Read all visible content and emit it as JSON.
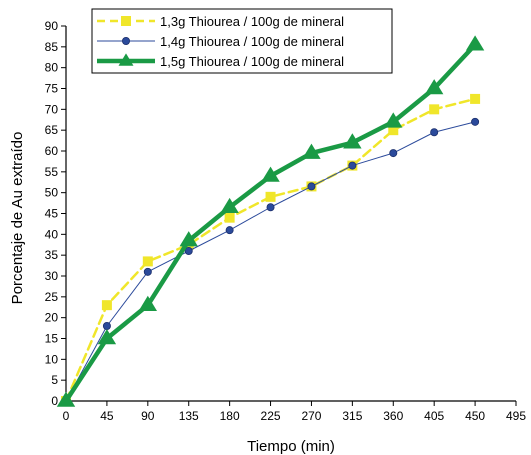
{
  "chart_data": {
    "type": "line",
    "xlabel": "Tiempo (min)",
    "ylabel": "Porcentaje de Au extraído",
    "xlim": [
      0,
      495
    ],
    "ylim": [
      0,
      90
    ],
    "x_ticks": [
      0,
      45,
      90,
      135,
      180,
      225,
      270,
      315,
      360,
      405,
      450,
      495
    ],
    "y_ticks": [
      0,
      5,
      10,
      15,
      20,
      25,
      30,
      35,
      40,
      45,
      50,
      55,
      60,
      65,
      70,
      75,
      80,
      85,
      90
    ],
    "grid": false,
    "legend_position": "top",
    "x": [
      0,
      45,
      90,
      135,
      180,
      225,
      270,
      315,
      360,
      405,
      450
    ],
    "series": [
      {
        "name": "1,3g Thiourea / 100g de mineral",
        "values": [
          0,
          23,
          33.5,
          37.5,
          44,
          49,
          51.5,
          56.5,
          65,
          70,
          72.5
        ],
        "color": "#f0e62a",
        "marker": "square",
        "line_style": "dashed"
      },
      {
        "name": "1,4g Thiourea / 100g de mineral",
        "values": [
          0,
          18,
          31,
          36,
          41,
          46.5,
          51.5,
          56.5,
          59.5,
          64.5,
          67
        ],
        "color": "#2b4a9b",
        "marker": "circle",
        "line_style": "solid"
      },
      {
        "name": "1,5g Thiourea / 100g de mineral",
        "values": [
          0,
          15,
          23,
          38.5,
          46.5,
          54,
          59.5,
          62,
          67,
          75,
          85.5
        ],
        "color": "#1a9a45",
        "marker": "triangle",
        "line_style": "solid-thick"
      }
    ]
  }
}
